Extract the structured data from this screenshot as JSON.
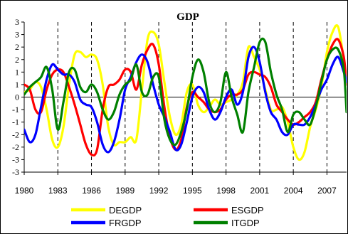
{
  "chart_data": {
    "type": "line",
    "title": "GDP",
    "xlabel": "",
    "ylabel": "",
    "x_tick_labels": [
      "1980",
      "1983",
      "1986",
      "1989",
      "1992",
      "1995",
      "1998",
      "2001",
      "2004",
      "2007"
    ],
    "x_range": [
      1980,
      2008.75
    ],
    "y_tick_labels": [
      "3",
      "3",
      "2",
      "2",
      "1",
      "1",
      "0",
      "-1",
      "-1",
      "-2",
      "-2",
      "-3",
      "-3"
    ],
    "ylim": [
      -3,
      3
    ],
    "vertical_dashed_gridlines": true,
    "zero_line": true,
    "legend_position": "bottom",
    "series": [
      {
        "name": "DEGDP",
        "color": "#FFFF00",
        "x": [
          1980,
          1980.5,
          1981,
          1981.5,
          1982,
          1982.5,
          1983,
          1983.5,
          1984,
          1984.5,
          1985,
          1985.5,
          1986,
          1986.5,
          1987,
          1987.5,
          1988,
          1988.5,
          1989,
          1989.5,
          1990,
          1990.5,
          1991,
          1991.5,
          1992,
          1992.5,
          1993,
          1993.5,
          1994,
          1994.5,
          1995,
          1995.5,
          1996,
          1996.5,
          1997,
          1997.5,
          1998,
          1998.5,
          1999,
          1999.5,
          2000,
          2000.5,
          2001,
          2001.5,
          2002,
          2002.5,
          2003,
          2003.5,
          2004,
          2004.5,
          2005,
          2005.5,
          2006,
          2006.5,
          2007,
          2007.5,
          2008,
          2008.5,
          2008.75
        ],
        "values": [
          0.2,
          0.3,
          0.6,
          0.4,
          -0.5,
          -1.7,
          -2.0,
          -1.2,
          0.5,
          1.7,
          1.8,
          1.6,
          1.7,
          1.5,
          0.5,
          -1.2,
          -1.9,
          -1.8,
          -1.8,
          -1.6,
          -1.7,
          0.3,
          2.3,
          2.6,
          2.1,
          0.6,
          -0.8,
          -1.5,
          -1.1,
          0.2,
          0.5,
          -0.3,
          -0.6,
          -0.4,
          -0.1,
          -0.3,
          -0.2,
          -0.1,
          0.1,
          0.6,
          2.0,
          1.6,
          1.1,
          0.3,
          -0.5,
          -0.5,
          -0.4,
          -1.0,
          -2.0,
          -2.5,
          -2.2,
          -1.2,
          -0.5,
          0.4,
          1.8,
          2.6,
          2.8,
          1.5,
          0.7
        ]
      },
      {
        "name": "ESGDP",
        "color": "#FF0000",
        "x": [
          1980,
          1980.5,
          1981,
          1981.5,
          1982,
          1982.5,
          1983,
          1983.5,
          1984,
          1984.5,
          1985,
          1985.5,
          1986,
          1986.5,
          1987,
          1987.5,
          1988,
          1988.5,
          1989,
          1989.5,
          1990,
          1990.5,
          1991,
          1991.5,
          1992,
          1992.5,
          1993,
          1993.5,
          1994,
          1994.5,
          1995,
          1995.5,
          1996,
          1996.5,
          1997,
          1997.5,
          1998,
          1998.5,
          1999,
          1999.5,
          2000,
          2000.5,
          2001,
          2001.5,
          2002,
          2002.5,
          2003,
          2003.5,
          2004,
          2004.5,
          2005,
          2005.5,
          2006,
          2006.5,
          2007,
          2007.5,
          2008,
          2008.5,
          2008.75
        ],
        "values": [
          0.5,
          0.3,
          -0.5,
          -0.6,
          0.3,
          0.9,
          1.1,
          1.0,
          0.4,
          -0.3,
          -1.1,
          -1.9,
          -2.3,
          -2.1,
          -0.5,
          0.4,
          0.5,
          0.7,
          1.1,
          1.0,
          0.3,
          1.3,
          1.9,
          2.1,
          1.3,
          -0.4,
          -1.6,
          -2.1,
          -1.7,
          -0.4,
          0.2,
          0.0,
          -0.2,
          -0.5,
          -0.6,
          -0.5,
          -0.1,
          0.1,
          0.1,
          0.3,
          0.9,
          1.0,
          0.9,
          0.8,
          0.4,
          -0.3,
          -0.6,
          -0.9,
          -1.1,
          -1.0,
          -0.8,
          -0.6,
          -0.2,
          0.7,
          1.5,
          2.1,
          2.3,
          1.6,
          0.5
        ]
      },
      {
        "name": "FRGDP",
        "color": "#0000FF",
        "x": [
          1980,
          1980.5,
          1981,
          1981.5,
          1982,
          1982.5,
          1983,
          1983.5,
          1984,
          1984.5,
          1985,
          1985.5,
          1986,
          1986.5,
          1987,
          1987.5,
          1988,
          1988.5,
          1989,
          1989.5,
          1990,
          1990.5,
          1991,
          1991.5,
          1992,
          1992.5,
          1993,
          1993.5,
          1994,
          1994.5,
          1995,
          1995.5,
          1996,
          1996.5,
          1997,
          1997.5,
          1998,
          1998.5,
          1999,
          1999.5,
          2000,
          2000.5,
          2001,
          2001.5,
          2002,
          2002.5,
          2003,
          2003.5,
          2004,
          2004.5,
          2005,
          2005.5,
          2006,
          2006.5,
          2007,
          2007.5,
          2008,
          2008.5,
          2008.75
        ],
        "values": [
          -1.3,
          -1.8,
          -1.5,
          -0.4,
          0.7,
          1.3,
          1.1,
          0.9,
          0.9,
          0.6,
          -0.1,
          -0.3,
          -0.4,
          -1.0,
          -1.9,
          -2.2,
          -1.8,
          -0.9,
          0.3,
          0.8,
          1.4,
          1.7,
          1.4,
          0.5,
          -0.3,
          -0.8,
          -1.4,
          -2.1,
          -1.9,
          -1.0,
          0.0,
          0.4,
          0.2,
          -0.5,
          -0.9,
          -0.6,
          0.0,
          0.3,
          -0.3,
          0.2,
          1.6,
          2.0,
          1.4,
          0.2,
          -0.6,
          -0.9,
          -1.4,
          -1.5,
          -1.1,
          -1.1,
          -1.1,
          -0.8,
          -0.3,
          0.3,
          0.7,
          1.3,
          1.6,
          1.0,
          0.6
        ]
      },
      {
        "name": "ITGDP",
        "color": "#008000",
        "x": [
          1980,
          1980.5,
          1981,
          1981.5,
          1982,
          1982.5,
          1983,
          1983.5,
          1984,
          1984.5,
          1985,
          1985.5,
          1986,
          1986.5,
          1987,
          1987.5,
          1988,
          1988.5,
          1989,
          1989.5,
          1990,
          1990.5,
          1991,
          1991.5,
          1992,
          1992.5,
          1993,
          1993.5,
          1994,
          1994.5,
          1995,
          1995.5,
          1996,
          1996.5,
          1997,
          1997.5,
          1998,
          1998.5,
          1999,
          1999.5,
          2000,
          2000.5,
          2001,
          2001.5,
          2002,
          2002.5,
          2003,
          2003.5,
          2004,
          2004.5,
          2005,
          2005.5,
          2006,
          2006.5,
          2007,
          2007.5,
          2008,
          2008.5,
          2008.75
        ],
        "values": [
          0.1,
          0.4,
          0.6,
          0.8,
          1.2,
          0.3,
          -1.3,
          -0.2,
          1.0,
          1.1,
          0.4,
          0.2,
          0.5,
          0.2,
          -0.5,
          -0.9,
          -0.6,
          0.1,
          0.5,
          0.7,
          1.3,
          0.2,
          0.1,
          0.8,
          0.8,
          -0.9,
          -1.7,
          -1.9,
          -1.4,
          -0.5,
          0.8,
          1.5,
          1.0,
          -0.2,
          -0.6,
          -0.2,
          1.0,
          0.0,
          -0.7,
          -1.4,
          0.2,
          1.2,
          2.2,
          2.2,
          1.0,
          0.1,
          -0.5,
          -1.4,
          -0.7,
          -0.6,
          -0.9,
          -1.1,
          -0.4,
          0.6,
          1.5,
          1.9,
          1.9,
          1.1,
          -0.6
        ]
      }
    ]
  }
}
